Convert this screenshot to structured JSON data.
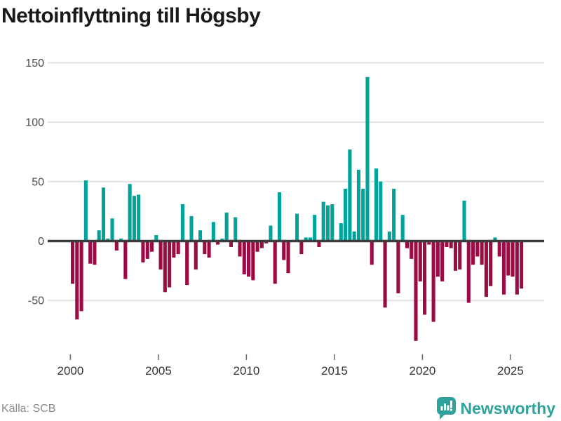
{
  "title": "Nettoinflyttning till Högsby",
  "footer": {
    "source": "Källa: SCB",
    "brand": "Newsworthy"
  },
  "chart_data": {
    "type": "bar",
    "title": "Nettoinflyttning till Högsby",
    "frequency": "quarterly",
    "start": "2000Q1",
    "end": "2025Q3",
    "values": [
      -36,
      -66,
      -59,
      51,
      -19,
      -20,
      9,
      45,
      2,
      19,
      -8,
      2,
      -32,
      48,
      38,
      39,
      -18,
      -15,
      -9,
      5,
      -24,
      -43,
      -39,
      -14,
      -11,
      31,
      -37,
      21,
      -24,
      9,
      -11,
      -14,
      16,
      -3,
      2,
      24,
      -5,
      20,
      -13,
      -28,
      -30,
      -33,
      -9,
      -6,
      -2,
      13,
      -36,
      41,
      -16,
      -27,
      0,
      23,
      -11,
      3,
      3,
      22,
      -5,
      33,
      30,
      31,
      0,
      15,
      44,
      77,
      8,
      60,
      44,
      138,
      -20,
      61,
      50,
      -56,
      8,
      44,
      -44,
      22,
      -6,
      -15,
      -84,
      -34,
      -62,
      -3,
      -68,
      -30,
      -34,
      -5,
      -6,
      -25,
      -24,
      34,
      -52,
      -20,
      -13,
      -20,
      -47,
      -38,
      3,
      -13,
      -45,
      -29,
      -30,
      -45,
      -40
    ],
    "x_ticks": [
      "2000",
      "2005",
      "2010",
      "2015",
      "2020",
      "2025"
    ],
    "x_tick_years": [
      2000,
      2005,
      2010,
      2015,
      2020,
      2025
    ],
    "y_ticks": [
      150,
      100,
      50,
      0,
      -50
    ],
    "y_tick_labels": [
      "150",
      "100",
      "50",
      "0",
      "-50"
    ],
    "ylim": [
      -95,
      155
    ],
    "grid": true,
    "legend": "none",
    "colors": {
      "positive": "#00a39b",
      "negative": "#9b0c44",
      "zero_line": "#3c3c3c",
      "gridline": "#e2e2e2",
      "axis_text": "#4a4a4a",
      "brand_teal": "#2fa29c"
    }
  }
}
